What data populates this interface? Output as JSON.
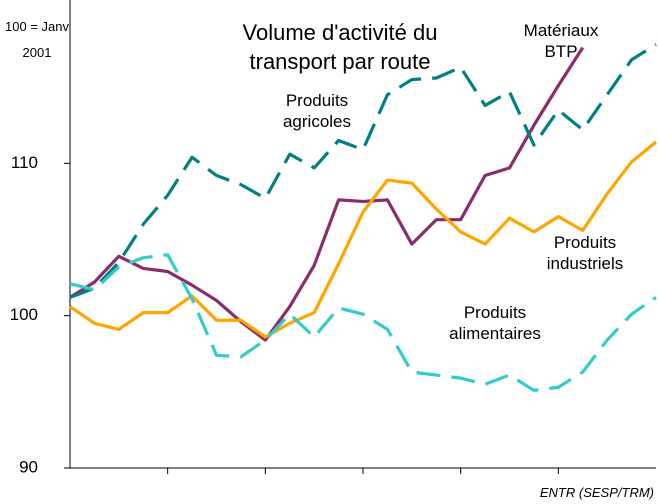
{
  "chart_data": {
    "type": "line",
    "title": "Volume d'activité du transport par route",
    "subtitle": "100 = Janv 2001",
    "source": "ENTR (SESP/TRM)",
    "categories": [
      null,
      null,
      null,
      null,
      null,
      null,
      null,
      null,
      null,
      null,
      null,
      null,
      null,
      null,
      null,
      null,
      null,
      null,
      null,
      null,
      null,
      null,
      null,
      null,
      null
    ],
    "ylim": [
      90,
      120
    ],
    "yticks": [
      90,
      100,
      110
    ],
    "grid": false,
    "series": [
      {
        "name": "Matériaux BTP",
        "color": "#8b2c6b",
        "dashed": false,
        "values": [
          101.2,
          102.2,
          103.9,
          103.1,
          102.9,
          102.0,
          101.0,
          99.6,
          98.4,
          100.6,
          103.3,
          107.6,
          107.5,
          107.6,
          104.7,
          106.3,
          106.3,
          109.2,
          109.7,
          112.5,
          115.1,
          117.6,
          null,
          null,
          null
        ]
      },
      {
        "name": "Produits industriels",
        "color": "#ffa500",
        "dashed": false,
        "values": [
          100.6,
          99.5,
          99.1,
          100.2,
          100.2,
          101.3,
          99.7,
          99.7,
          98.6,
          99.5,
          100.2,
          103.4,
          106.8,
          108.9,
          108.7,
          107.0,
          105.5,
          104.7,
          106.4,
          105.5,
          106.5,
          105.6,
          108.0,
          110.1,
          111.4
        ]
      },
      {
        "name": "Produits agricoles",
        "color": "#008080",
        "dashed": true,
        "values": [
          101.2,
          101.8,
          103.5,
          106.0,
          107.9,
          110.4,
          109.2,
          108.6,
          107.7,
          110.6,
          109.7,
          111.5,
          110.9,
          114.5,
          115.5,
          115.6,
          116.3,
          113.8,
          114.7,
          111.2,
          113.5,
          112.2,
          114.5,
          116.8,
          117.8
        ]
      },
      {
        "name": "Produits alimentaires",
        "color": "#33cccc",
        "dashed": true,
        "values": [
          102.1,
          101.7,
          103.2,
          103.8,
          104.0,
          101.1,
          97.4,
          97.3,
          98.4,
          100.1,
          98.6,
          100.5,
          100.1,
          99.1,
          96.3,
          96.1,
          95.9,
          95.5,
          96.1,
          95.1,
          95.3,
          96.3,
          98.4,
          100.1,
          101.2
        ]
      }
    ]
  }
}
